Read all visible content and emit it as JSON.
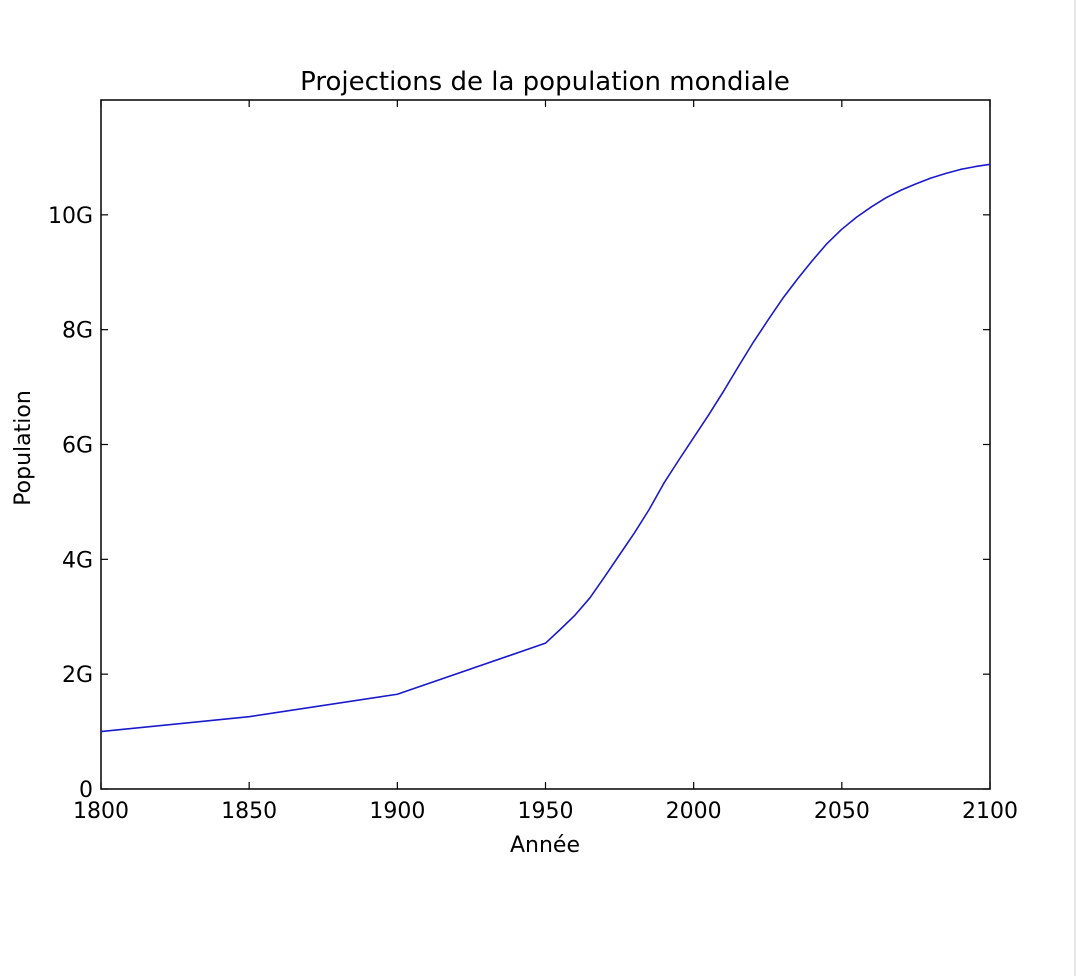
{
  "chart_data": {
    "type": "line",
    "title": "Projections de la population mondiale",
    "xlabel": "Année",
    "ylabel": "Population",
    "xlim": [
      1800,
      2100
    ],
    "ylim": [
      0,
      12000000000
    ],
    "x_ticks": [
      1800,
      1850,
      1900,
      1950,
      2000,
      2050,
      2100
    ],
    "x_tick_labels": [
      "1800",
      "1850",
      "1900",
      "1950",
      "2000",
      "2050",
      "2100"
    ],
    "y_ticks": [
      0,
      2000000000,
      4000000000,
      6000000000,
      8000000000,
      10000000000
    ],
    "y_tick_labels": [
      "0",
      "2G",
      "4G",
      "6G",
      "8G",
      "10G"
    ],
    "grid": false,
    "series": [
      {
        "color": "#1a1acc",
        "x": [
          1800,
          1850,
          1900,
          1950,
          1955,
          1960,
          1965,
          1970,
          1975,
          1980,
          1985,
          1990,
          1995,
          2000,
          2005,
          2010,
          2015,
          2020,
          2025,
          2030,
          2035,
          2040,
          2045,
          2050,
          2055,
          2060,
          2065,
          2070,
          2075,
          2080,
          2085,
          2090,
          2095,
          2100
        ],
        "y": [
          1000000000,
          1260000000,
          1650000000,
          2540000000,
          2780000000,
          3030000000,
          3330000000,
          3700000000,
          4080000000,
          4460000000,
          4870000000,
          5330000000,
          5730000000,
          6120000000,
          6510000000,
          6920000000,
          7350000000,
          7770000000,
          8160000000,
          8540000000,
          8880000000,
          9200000000,
          9500000000,
          9750000000,
          9960000000,
          10140000000,
          10300000000,
          10430000000,
          10540000000,
          10640000000,
          10720000000,
          10790000000,
          10840000000,
          10880000000
        ]
      }
    ]
  }
}
